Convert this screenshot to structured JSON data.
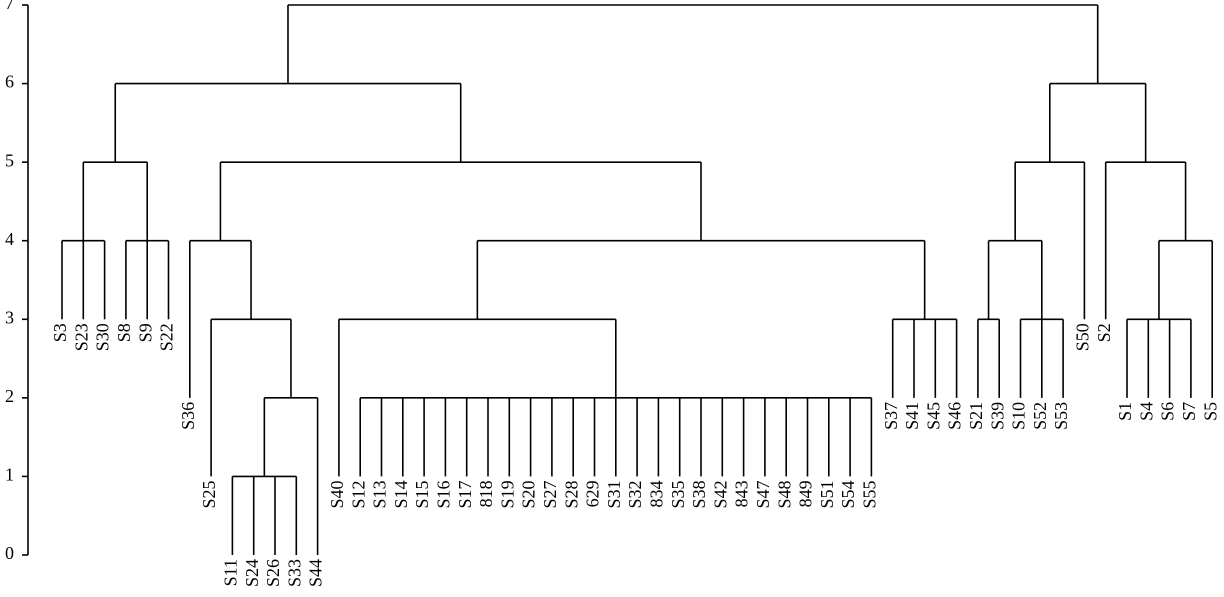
{
  "chart_data": {
    "type": "dendrogram",
    "ylim": [
      0,
      7
    ],
    "yticks": [
      0,
      1,
      2,
      3,
      4,
      5,
      6,
      7
    ],
    "tree": {
      "height": 7,
      "children": [
        {
          "height": 6,
          "children": [
            {
              "height": 5,
              "children": [
                {
                  "height": 4,
                  "children": [
                    {
                      "label": "S3",
                      "height": 3
                    },
                    {
                      "label": "S23",
                      "height": 3
                    },
                    {
                      "label": "S30",
                      "height": 3
                    }
                  ]
                },
                {
                  "height": 4,
                  "children": [
                    {
                      "label": "S8",
                      "height": 3
                    },
                    {
                      "label": "S9",
                      "height": 3
                    },
                    {
                      "label": "S22",
                      "height": 3
                    }
                  ]
                }
              ]
            },
            {
              "height": 5,
              "children": [
                {
                  "height": 4,
                  "children": [
                    {
                      "label": "S36",
                      "height": 2
                    },
                    {
                      "height": 3,
                      "children": [
                        {
                          "label": "S25",
                          "height": 1
                        },
                        {
                          "height": 2,
                          "children": [
                            {
                              "height": 1,
                              "children": [
                                {
                                  "label": "S11",
                                  "height": 0
                                },
                                {
                                  "label": "S24",
                                  "height": 0
                                },
                                {
                                  "label": "S26",
                                  "height": 0
                                },
                                {
                                  "label": "S33",
                                  "height": 0
                                }
                              ]
                            },
                            {
                              "label": "S44",
                              "height": 0
                            }
                          ]
                        }
                      ]
                    }
                  ]
                },
                {
                  "height": 4,
                  "children": [
                    {
                      "height": 3,
                      "children": [
                        {
                          "label": "S40",
                          "height": 1
                        },
                        {
                          "height": 2,
                          "children": [
                            {
                              "label": "S12",
                              "height": 1
                            },
                            {
                              "label": "S13",
                              "height": 1
                            },
                            {
                              "label": "S14",
                              "height": 1
                            },
                            {
                              "label": "S15",
                              "height": 1
                            },
                            {
                              "label": "S16",
                              "height": 1
                            },
                            {
                              "label": "S17",
                              "height": 1
                            },
                            {
                              "label": "818",
                              "height": 1
                            },
                            {
                              "label": "S19",
                              "height": 1
                            },
                            {
                              "label": "S20",
                              "height": 1
                            },
                            {
                              "label": "S27",
                              "height": 1
                            },
                            {
                              "label": "S28",
                              "height": 1
                            },
                            {
                              "label": "629",
                              "height": 1
                            },
                            {
                              "label": "S31",
                              "height": 1
                            },
                            {
                              "label": "S32",
                              "height": 1
                            },
                            {
                              "label": "834",
                              "height": 1
                            },
                            {
                              "label": "S35",
                              "height": 1
                            },
                            {
                              "label": "S38",
                              "height": 1
                            },
                            {
                              "label": "S42",
                              "height": 1
                            },
                            {
                              "label": "843",
                              "height": 1
                            },
                            {
                              "label": "S47",
                              "height": 1
                            },
                            {
                              "label": "S48",
                              "height": 1
                            },
                            {
                              "label": "849",
                              "height": 1
                            },
                            {
                              "label": "S51",
                              "height": 1
                            },
                            {
                              "label": "S54",
                              "height": 1
                            },
                            {
                              "label": "S55",
                              "height": 1
                            }
                          ]
                        }
                      ]
                    },
                    {
                      "height": 3,
                      "children": [
                        {
                          "label": "S37",
                          "height": 2
                        },
                        {
                          "label": "S41",
                          "height": 2
                        },
                        {
                          "label": "S45",
                          "height": 2
                        },
                        {
                          "label": "S46",
                          "height": 2
                        }
                      ]
                    }
                  ]
                }
              ]
            }
          ]
        },
        {
          "height": 6,
          "children": [
            {
              "height": 5,
              "children": [
                {
                  "height": 4,
                  "children": [
                    {
                      "height": 3,
                      "children": [
                        {
                          "label": "S21",
                          "height": 2
                        },
                        {
                          "label": "S39",
                          "height": 2
                        }
                      ]
                    },
                    {
                      "height": 3,
                      "children": [
                        {
                          "label": "S10",
                          "height": 2
                        },
                        {
                          "label": "S52",
                          "height": 2
                        },
                        {
                          "label": "S53",
                          "height": 2
                        }
                      ]
                    }
                  ]
                },
                {
                  "label": "S50",
                  "height": 3
                }
              ]
            },
            {
              "height": 5,
              "children": [
                {
                  "label": "S2",
                  "height": 3
                },
                {
                  "height": 4,
                  "children": [
                    {
                      "height": 3,
                      "children": [
                        {
                          "label": "S1",
                          "height": 2
                        },
                        {
                          "label": "S4",
                          "height": 2
                        },
                        {
                          "label": "S6",
                          "height": 2
                        },
                        {
                          "label": "S7",
                          "height": 2
                        }
                      ]
                    },
                    {
                      "label": "S5",
                      "height": 2
                    }
                  ]
                }
              ]
            }
          ]
        }
      ]
    }
  }
}
